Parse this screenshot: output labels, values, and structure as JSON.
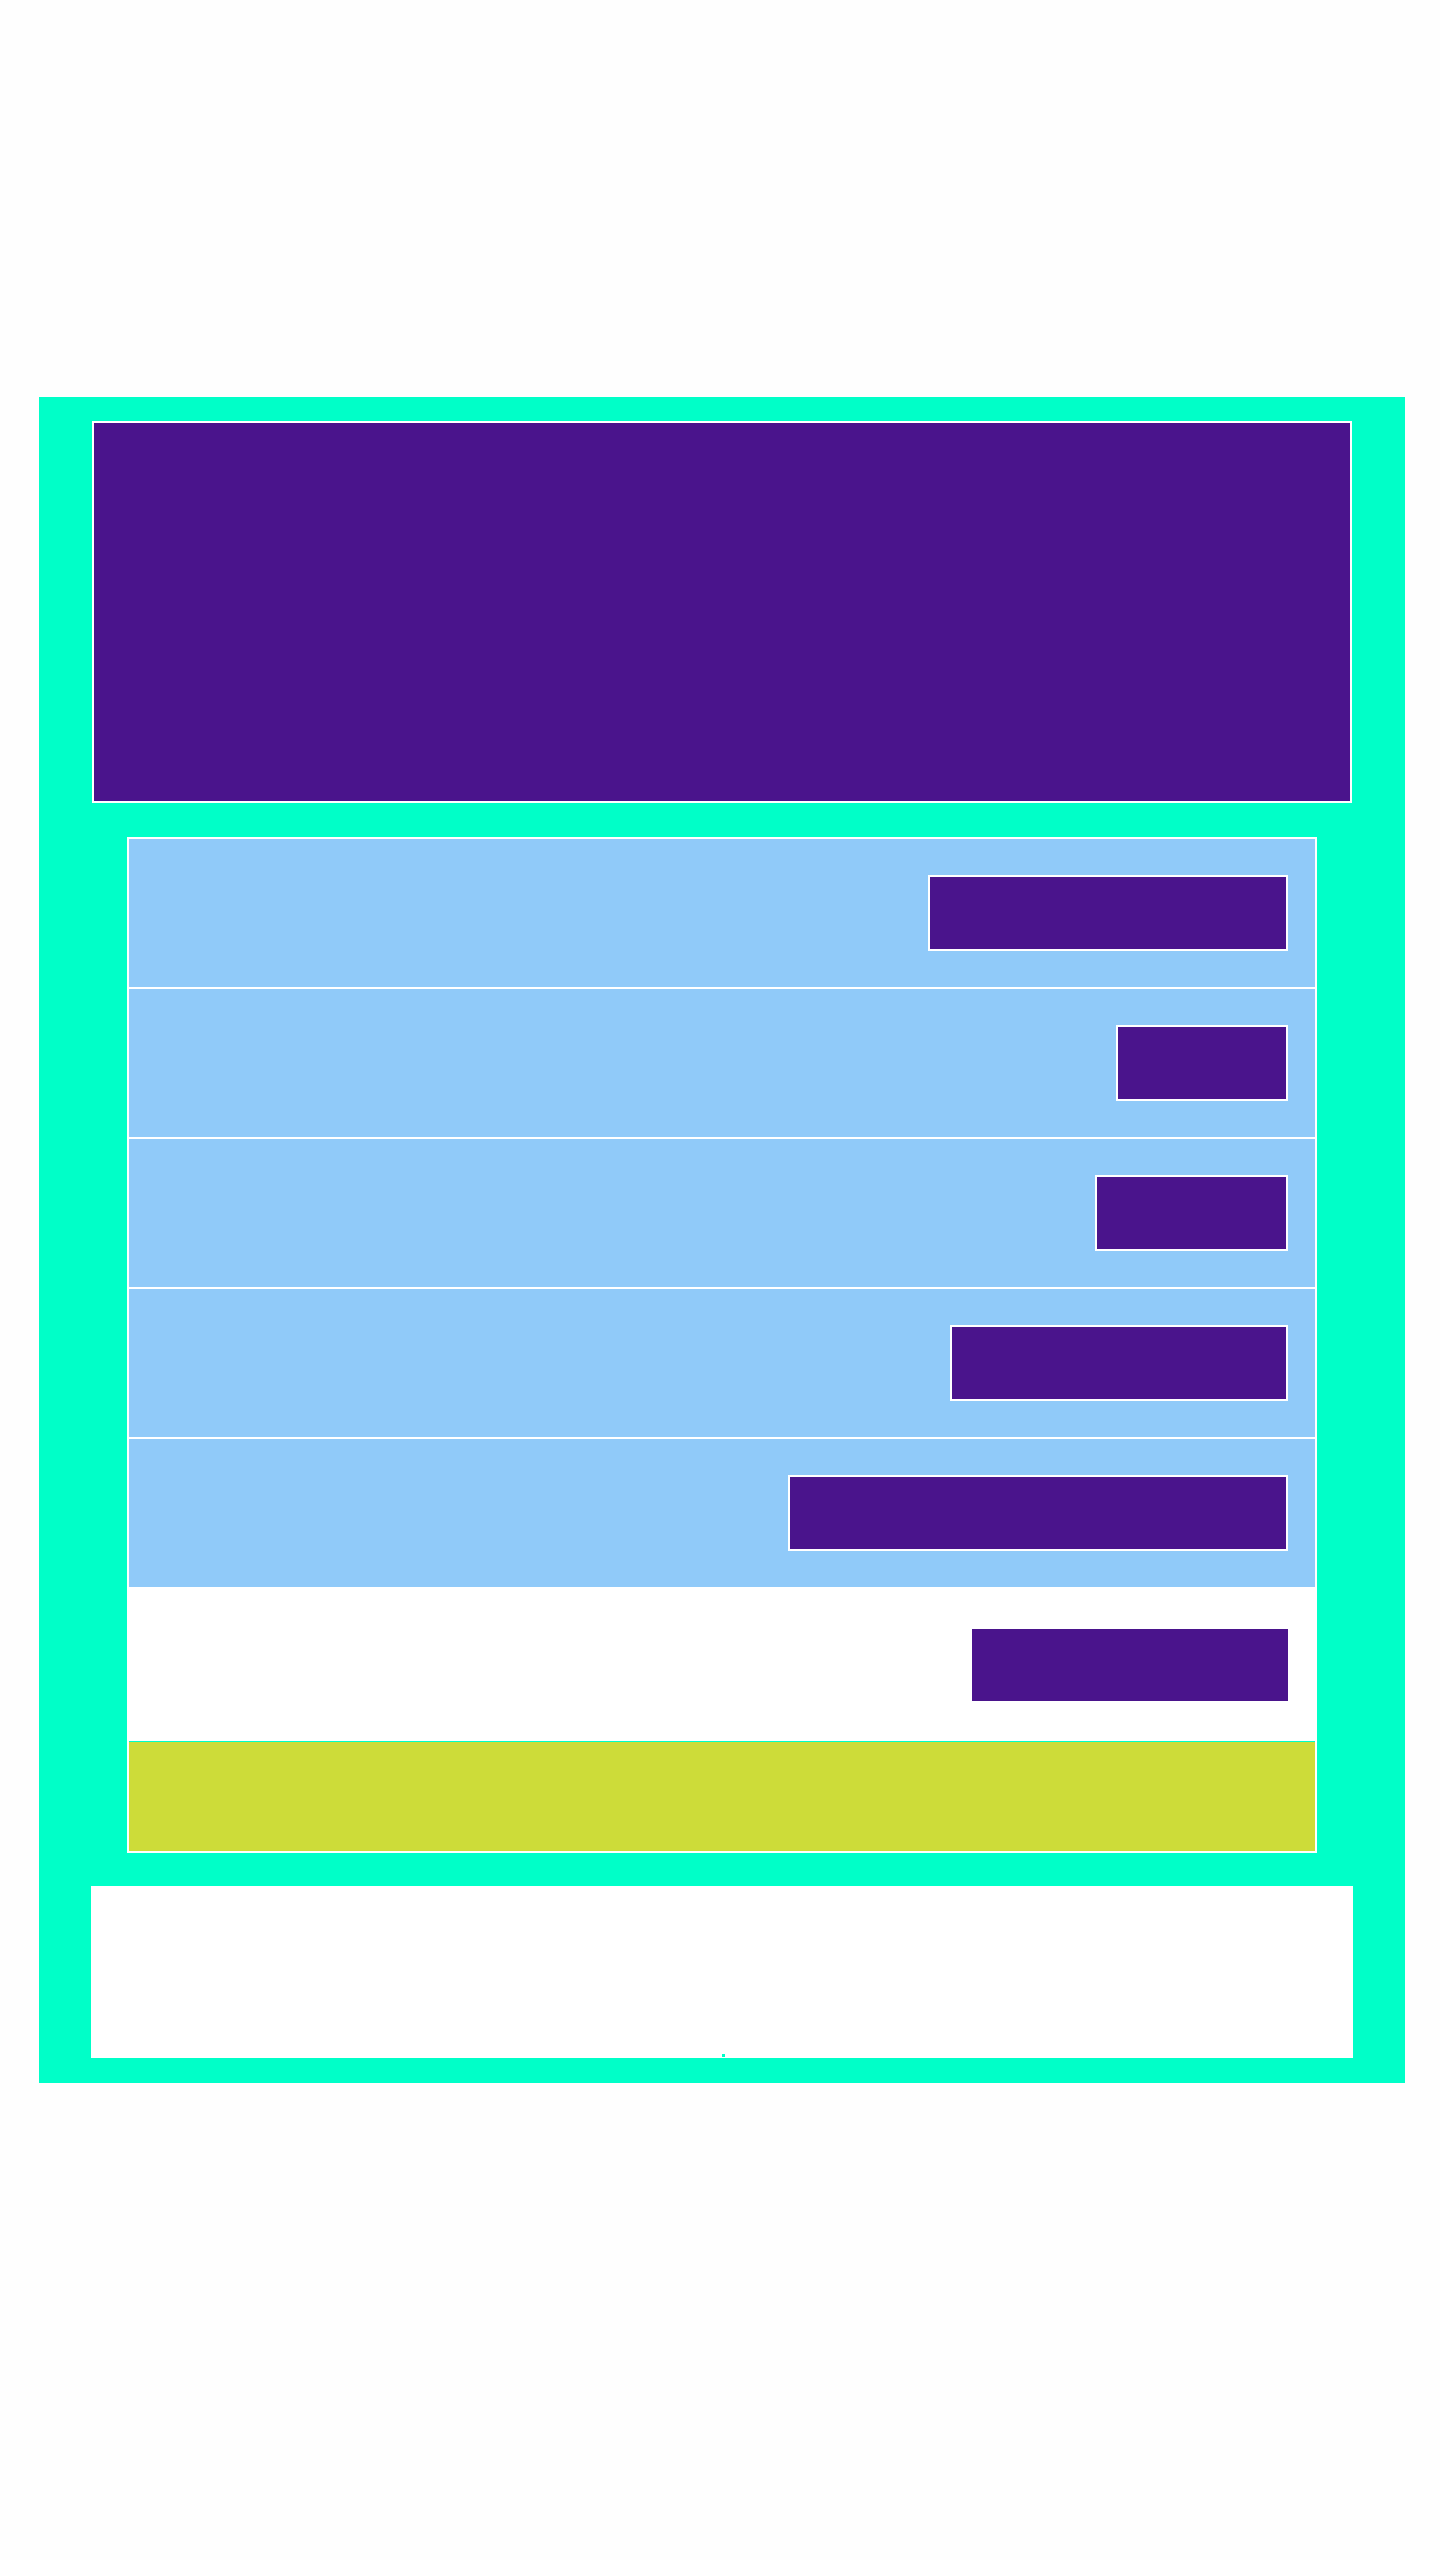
{
  "colors": {
    "frame": "#00ffc8",
    "hero": "#4a148c",
    "row_blue": "#90caf9",
    "pill": "#4a148c",
    "row_white": "#ffffff",
    "footer_row": "#cddc39",
    "bottom_panel": "#ffffff",
    "page": "#fefefe"
  },
  "hero": {
    "title": ""
  },
  "list": {
    "rows": [
      {
        "label": "",
        "button_label": ""
      },
      {
        "label": "",
        "button_label": ""
      },
      {
        "label": "",
        "button_label": ""
      },
      {
        "label": "",
        "button_label": ""
      },
      {
        "label": "",
        "button_label": ""
      },
      {
        "label": "",
        "button_label": ""
      }
    ],
    "footer": {
      "label": ""
    }
  },
  "bottom": {
    "text": ""
  }
}
